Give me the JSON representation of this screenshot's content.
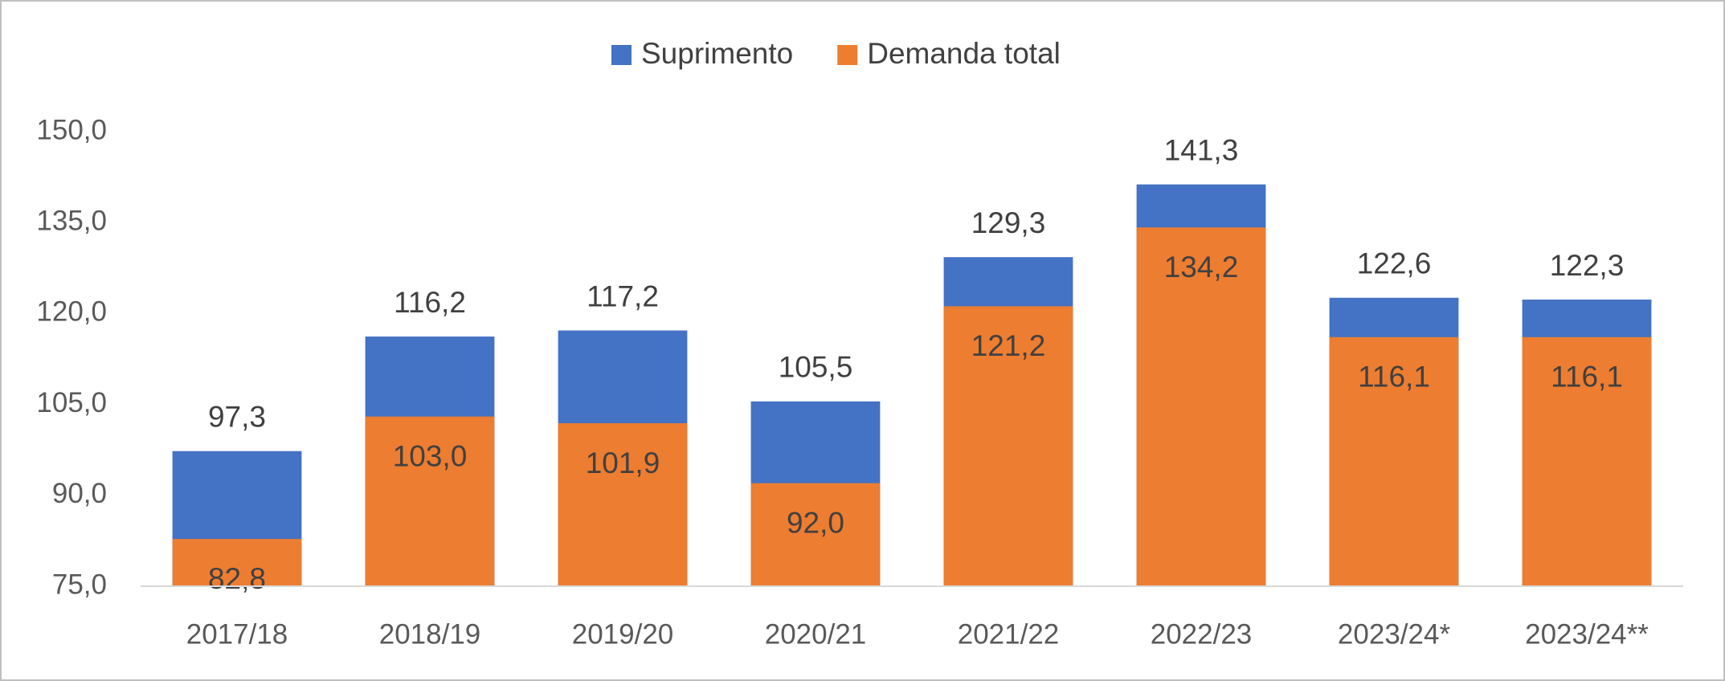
{
  "chart_data": {
    "type": "bar",
    "layout": "overlap",
    "categories": [
      "2017/18",
      "2018/19",
      "2019/20",
      "2020/21",
      "2021/22",
      "2022/23",
      "2023/24*",
      "2023/24**"
    ],
    "series": [
      {
        "name": "Suprimento",
        "color": "#4472c4",
        "values": [
          97.3,
          116.2,
          117.2,
          105.5,
          129.3,
          141.3,
          122.6,
          122.3
        ],
        "value_labels": [
          "97,3",
          "116,2",
          "117,2",
          "105,5",
          "129,3",
          "141,3",
          "122,6",
          "122,3"
        ]
      },
      {
        "name": "Demanda total",
        "color": "#ed7d31",
        "values": [
          82.8,
          103.0,
          101.9,
          92.0,
          121.2,
          134.2,
          116.1,
          116.1
        ],
        "value_labels": [
          "82,8",
          "103,0",
          "101,9",
          "92,0",
          "121,2",
          "134,2",
          "116,1",
          "116,1"
        ]
      }
    ],
    "ylim": [
      75,
      150
    ],
    "yticks": [
      {
        "value": 75,
        "label": "75,0"
      },
      {
        "value": 90,
        "label": "90,0"
      },
      {
        "value": 105,
        "label": "105,0"
      },
      {
        "value": 120,
        "label": "120,0"
      },
      {
        "value": 135,
        "label": "135,0"
      },
      {
        "value": 150,
        "label": "150,0"
      }
    ],
    "grid": false,
    "legend": "top"
  }
}
